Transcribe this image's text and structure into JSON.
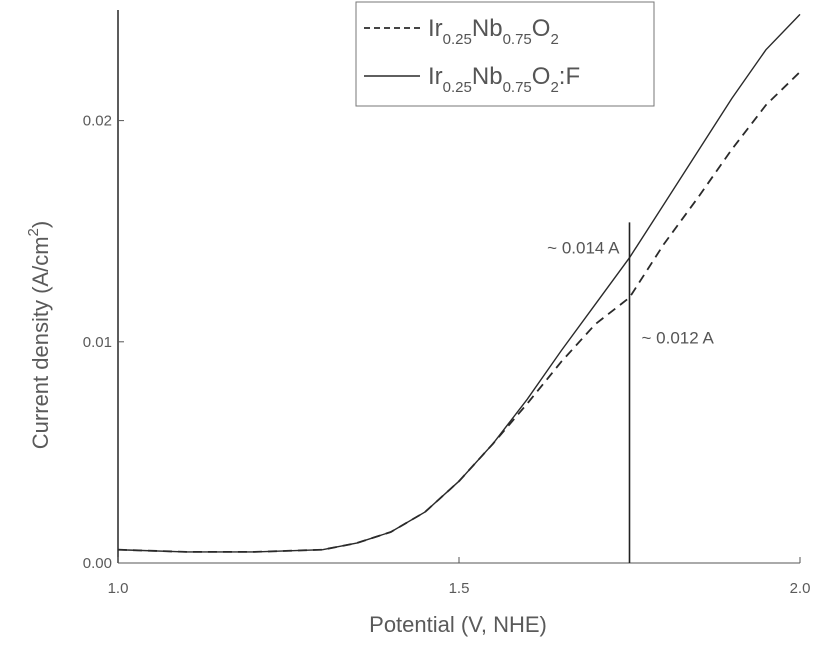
{
  "chart_data": {
    "type": "line",
    "xlabel": "Potential (V, NHE)",
    "ylabel_main": "Current density (A/cm",
    "ylabel_sup": "2",
    "ylabel_close": ")",
    "xlim": [
      1.0,
      2.0
    ],
    "ylim": [
      0.0,
      0.025
    ],
    "x_ticks": [
      1.0,
      1.5,
      2.0
    ],
    "x_tick_labels": [
      "1.0",
      "1.5",
      "2.0"
    ],
    "y_ticks": [
      0.0,
      0.01,
      0.02
    ],
    "y_tick_labels": [
      "0.00",
      "0.01",
      "0.02"
    ],
    "grid": false,
    "legend_position": "top-right",
    "series": [
      {
        "legend_parts": [
          {
            "text": "Ir",
            "sub": false
          },
          {
            "text": "0.25",
            "sub": true
          },
          {
            "text": "Nb",
            "sub": false
          },
          {
            "text": "0.75",
            "sub": true
          },
          {
            "text": "O",
            "sub": false
          },
          {
            "text": "2",
            "sub": true
          }
        ],
        "style": "dashed",
        "x": [
          1.0,
          1.1,
          1.2,
          1.3,
          1.35,
          1.4,
          1.45,
          1.5,
          1.55,
          1.6,
          1.65,
          1.7,
          1.75,
          1.8,
          1.85,
          1.9,
          1.95,
          2.0
        ],
        "y": [
          0.0006,
          0.0005,
          0.0005,
          0.0006,
          0.0009,
          0.0014,
          0.0023,
          0.0037,
          0.0054,
          0.0072,
          0.0091,
          0.0108,
          0.012,
          0.0144,
          0.0165,
          0.0187,
          0.0207,
          0.0222
        ]
      },
      {
        "legend_parts": [
          {
            "text": "Ir",
            "sub": false
          },
          {
            "text": "0.25",
            "sub": true
          },
          {
            "text": "Nb",
            "sub": false
          },
          {
            "text": "0.75",
            "sub": true
          },
          {
            "text": "O",
            "sub": false
          },
          {
            "text": "2",
            "sub": true
          },
          {
            "text": ":F",
            "sub": false
          }
        ],
        "style": "solid",
        "x": [
          1.0,
          1.1,
          1.2,
          1.3,
          1.35,
          1.4,
          1.45,
          1.5,
          1.55,
          1.6,
          1.65,
          1.7,
          1.75,
          1.8,
          1.85,
          1.9,
          1.95,
          2.0
        ],
        "y": [
          0.0006,
          0.0005,
          0.0005,
          0.0006,
          0.0009,
          0.0014,
          0.0023,
          0.0037,
          0.0054,
          0.0074,
          0.0096,
          0.0117,
          0.0138,
          0.0162,
          0.0186,
          0.021,
          0.0232,
          0.0248
        ]
      }
    ],
    "vline_x": 1.75,
    "annotations": [
      {
        "text": "~ 0.014 A",
        "x": 1.75,
        "y": 0.0138,
        "side": "left"
      },
      {
        "text": "~ 0.012 A",
        "x": 1.75,
        "y": 0.0112,
        "side": "right"
      }
    ]
  }
}
